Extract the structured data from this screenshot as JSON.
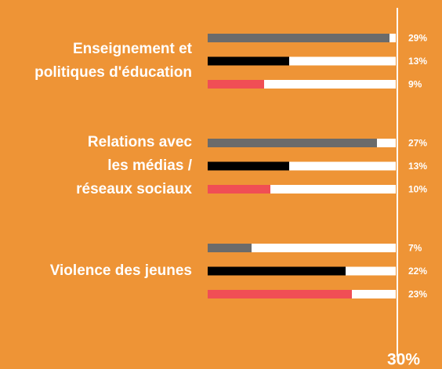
{
  "chart_data": {
    "type": "bar",
    "orientation": "horizontal",
    "categories": [
      [
        "Enseignement et",
        "politiques d'éducation"
      ],
      [
        "Relations avec",
        "les médias /",
        "réseaux sociaux"
      ],
      [
        "Violence des jeunes"
      ]
    ],
    "series": [
      {
        "color": "#6b6b6b",
        "values": [
          29,
          27,
          7
        ],
        "value_labels": [
          "29%",
          "27%",
          "7%"
        ]
      },
      {
        "color": "#000000",
        "values": [
          13,
          13,
          22
        ],
        "value_labels": [
          "13%",
          "13%",
          "22%"
        ]
      },
      {
        "color": "#f04e55",
        "values": [
          9,
          10,
          23
        ],
        "value_labels": [
          "9%",
          "10%",
          "23%"
        ]
      }
    ],
    "xlim": [
      0,
      30
    ],
    "xticks": [
      {
        "value": 30,
        "label": "30%"
      }
    ],
    "background": "#ee9436",
    "track_color": "#ffffff"
  }
}
